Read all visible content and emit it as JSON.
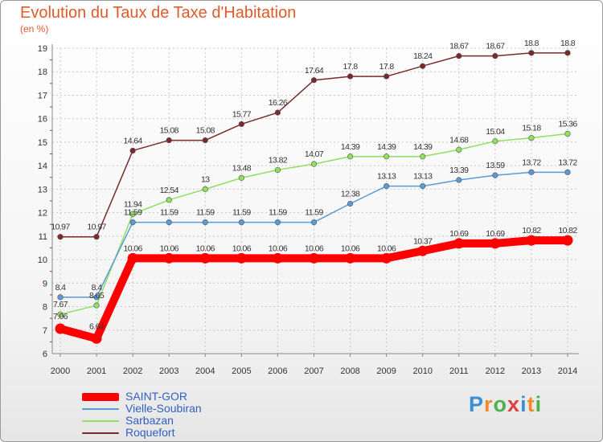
{
  "title": "Evolution du Taux de Taxe d'Habitation",
  "unit_label": "(en %)",
  "logo": {
    "text": "Proxiti",
    "colors": [
      "#3a8fd8",
      "#f08a2a",
      "#4fb04f",
      "#e04040",
      "#3a8fd8",
      "#f08a2a",
      "#4fb04f"
    ]
  },
  "chart_data": {
    "type": "line",
    "title": "Evolution du Taux de Taxe d'Habitation",
    "ylabel": "(en %)",
    "xlabel": "",
    "x": [
      2000,
      2001,
      2002,
      2003,
      2004,
      2005,
      2006,
      2007,
      2008,
      2009,
      2010,
      2011,
      2012,
      2013,
      2014
    ],
    "ylim": [
      6,
      19
    ],
    "yticks": [
      6,
      7,
      8,
      9,
      10,
      11,
      12,
      13,
      14,
      15,
      16,
      17,
      18,
      19
    ],
    "grid": true,
    "legend_position": "bottom-left",
    "series": [
      {
        "name": "SAINT-GOR",
        "color": "#ff0000",
        "values": [
          7.06,
          6.64,
          10.06,
          10.06,
          10.06,
          10.06,
          10.06,
          10.06,
          10.06,
          10.06,
          10.37,
          10.69,
          10.69,
          10.82,
          10.82
        ],
        "labels": [
          "7.06",
          "6.64",
          "10.06",
          "10.06",
          "10.06",
          "10.06",
          "10.06",
          "10.06",
          "10.06",
          "10.06",
          "10.37",
          "10.69",
          "10.69",
          "10.82",
          "10.82"
        ]
      },
      {
        "name": "Vielle-Soubiran",
        "color": "#5b9bd5",
        "values": [
          8.4,
          8.4,
          11.59,
          11.59,
          11.59,
          11.59,
          11.59,
          11.59,
          12.38,
          13.13,
          13.13,
          13.39,
          13.59,
          13.72,
          13.72
        ],
        "labels": [
          "8.4",
          "8.4",
          "11.59",
          "11.59",
          "11.59",
          "11.59",
          "11.59",
          "11.59",
          "12.38",
          "13.13",
          "13.13",
          "13.39",
          "13.59",
          "13.72",
          "13.72"
        ]
      },
      {
        "name": "Sarbazan",
        "color": "#90e060",
        "values": [
          7.67,
          8.05,
          11.94,
          12.54,
          13,
          13.48,
          13.82,
          14.07,
          14.39,
          14.39,
          14.39,
          14.68,
          15.04,
          15.18,
          15.36
        ],
        "labels": [
          "7.67",
          "8.05",
          "11.94",
          "12.54",
          "13",
          "13.48",
          "13.82",
          "14.07",
          "14.39",
          "14.39",
          "14.39",
          "14.68",
          "15.04",
          "15.18",
          "15.36"
        ]
      },
      {
        "name": "Roquefort",
        "color": "#7a2a2a",
        "values": [
          10.97,
          10.97,
          14.64,
          15.08,
          15.08,
          15.77,
          16.26,
          17.64,
          17.8,
          17.8,
          18.24,
          18.67,
          18.67,
          18.8,
          18.8
        ],
        "labels": [
          "10.97",
          "10.97",
          "14.64",
          "15.08",
          "15.08",
          "15.77",
          "16.26",
          "17.64",
          "17.8",
          "17.8",
          "18.24",
          "18.67",
          "18.67",
          "18.8",
          "18.8"
        ]
      }
    ]
  }
}
